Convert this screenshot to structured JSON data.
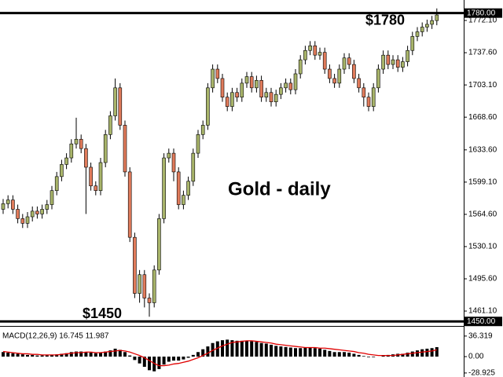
{
  "chart_data": [
    {
      "type": "candlestick",
      "title": "Gold - daily",
      "open": [
        1570,
        1576,
        1580,
        1570,
        1560,
        1555,
        1562,
        1568,
        1565,
        1570,
        1575,
        1590,
        1605,
        1618,
        1625,
        1640,
        1645,
        1635,
        1615,
        1595,
        1590,
        1620,
        1650,
        1670,
        1700,
        1660,
        1610,
        1540,
        1480,
        1500,
        1475,
        1470,
        1505,
        1560,
        1625,
        1630,
        1610,
        1575,
        1585,
        1600,
        1630,
        1650,
        1660,
        1700,
        1720,
        1710,
        1690,
        1680,
        1695,
        1690,
        1705,
        1712,
        1700,
        1708,
        1690,
        1695,
        1685,
        1693,
        1700,
        1705,
        1698,
        1715,
        1730,
        1740,
        1745,
        1735,
        1738,
        1720,
        1710,
        1705,
        1720,
        1732,
        1725,
        1710,
        1700,
        1690,
        1680,
        1700,
        1720,
        1735,
        1725,
        1730,
        1722,
        1728,
        1740,
        1755,
        1760,
        1765,
        1768,
        1772
      ],
      "high": [
        1581,
        1585,
        1585,
        1575,
        1565,
        1567,
        1573,
        1573,
        1575,
        1580,
        1595,
        1610,
        1623,
        1630,
        1645,
        1668,
        1650,
        1640,
        1620,
        1600,
        1625,
        1655,
        1675,
        1710,
        1705,
        1665,
        1615,
        1545,
        1505,
        1505,
        1480,
        1510,
        1565,
        1630,
        1635,
        1635,
        1615,
        1590,
        1605,
        1635,
        1655,
        1665,
        1705,
        1725,
        1725,
        1715,
        1695,
        1700,
        1700,
        1710,
        1717,
        1717,
        1713,
        1713,
        1700,
        1700,
        1698,
        1705,
        1710,
        1710,
        1720,
        1735,
        1745,
        1750,
        1750,
        1743,
        1743,
        1725,
        1715,
        1725,
        1737,
        1737,
        1730,
        1715,
        1705,
        1695,
        1705,
        1725,
        1740,
        1740,
        1735,
        1735,
        1733,
        1745,
        1760,
        1765,
        1770,
        1773,
        1777,
        1785
      ],
      "low": [
        1565,
        1571,
        1565,
        1555,
        1550,
        1550,
        1557,
        1560,
        1560,
        1565,
        1570,
        1585,
        1600,
        1613,
        1620,
        1635,
        1630,
        1565,
        1590,
        1585,
        1585,
        1615,
        1645,
        1665,
        1655,
        1605,
        1535,
        1475,
        1470,
        1465,
        1455,
        1465,
        1500,
        1555,
        1620,
        1600,
        1570,
        1570,
        1580,
        1595,
        1625,
        1645,
        1655,
        1695,
        1705,
        1685,
        1675,
        1675,
        1685,
        1685,
        1700,
        1695,
        1695,
        1685,
        1685,
        1680,
        1680,
        1688,
        1695,
        1693,
        1693,
        1710,
        1725,
        1735,
        1730,
        1730,
        1715,
        1705,
        1700,
        1700,
        1715,
        1720,
        1705,
        1695,
        1680,
        1675,
        1675,
        1695,
        1715,
        1720,
        1720,
        1717,
        1717,
        1723,
        1735,
        1750,
        1755,
        1760,
        1763,
        1767
      ],
      "close": [
        1576,
        1580,
        1570,
        1560,
        1555,
        1562,
        1568,
        1565,
        1570,
        1575,
        1590,
        1605,
        1618,
        1625,
        1640,
        1645,
        1635,
        1615,
        1595,
        1590,
        1620,
        1650,
        1670,
        1700,
        1660,
        1610,
        1540,
        1480,
        1500,
        1475,
        1470,
        1505,
        1560,
        1625,
        1630,
        1610,
        1575,
        1585,
        1600,
        1630,
        1650,
        1660,
        1700,
        1720,
        1710,
        1690,
        1680,
        1695,
        1690,
        1705,
        1712,
        1700,
        1708,
        1690,
        1695,
        1685,
        1693,
        1700,
        1705,
        1698,
        1715,
        1730,
        1740,
        1745,
        1735,
        1738,
        1720,
        1710,
        1705,
        1720,
        1732,
        1725,
        1710,
        1700,
        1690,
        1680,
        1700,
        1720,
        1735,
        1725,
        1730,
        1722,
        1728,
        1740,
        1755,
        1760,
        1765,
        1768,
        1772,
        1778
      ],
      "up_color": "#a8b46a",
      "down_color": "#e07b5b",
      "ylim": [
        1446,
        1794
      ],
      "yticks": [
        {
          "value": 1772.1,
          "label": "1772.10"
        },
        {
          "value": 1737.6,
          "label": "1737.60"
        },
        {
          "value": 1703.1,
          "label": "1703.10"
        },
        {
          "value": 1668.6,
          "label": "1668.60"
        },
        {
          "value": 1633.6,
          "label": "1633.60"
        },
        {
          "value": 1599.1,
          "label": "1599.10"
        },
        {
          "value": 1564.6,
          "label": "1564.60"
        },
        {
          "value": 1530.1,
          "label": "1530.10"
        },
        {
          "value": 1495.6,
          "label": "1495.60"
        },
        {
          "value": 1461.1,
          "label": "1461.10"
        }
      ],
      "levels": [
        {
          "value": 1780,
          "label": "1780.00",
          "note": "$1780"
        },
        {
          "value": 1450,
          "label": "1450.00",
          "note": "$1450"
        }
      ]
    },
    {
      "type": "macd",
      "label": "MACD(12,26,9) 16.745 11.987",
      "ylim": [
        -36,
        50
      ],
      "yticks": [
        36.319,
        {
          "value": 0,
          "label": "0.00"
        },
        -28.925
      ],
      "series": [
        {
          "color": "#000000",
          "values": [
            8,
            7,
            6,
            5,
            4,
            3,
            3,
            2,
            2,
            2,
            3,
            4,
            5,
            6,
            8,
            9,
            9,
            8,
            7,
            6,
            7,
            9,
            11,
            14,
            12,
            8,
            2,
            -6,
            -12,
            -18,
            -24,
            -26,
            -22,
            -14,
            -9,
            -7,
            -7,
            -5,
            -2,
            3,
            8,
            13,
            18,
            24,
            27,
            29,
            30,
            29,
            28,
            28,
            28,
            27,
            26,
            24,
            23,
            21,
            19,
            18,
            17,
            16,
            15,
            15,
            16,
            16,
            15,
            14,
            12,
            10,
            8,
            8,
            8,
            7,
            5,
            3,
            1,
            -1,
            -1,
            0,
            2,
            3,
            4,
            5,
            5,
            7,
            9,
            11,
            13,
            14,
            15,
            16.745
          ]
        },
        {
          "color": "#e00000",
          "values": [
            9,
            8,
            7,
            6,
            5,
            5,
            4,
            4,
            3,
            3,
            3,
            3,
            4,
            5,
            6,
            7,
            7,
            8,
            8,
            7,
            7,
            8,
            9,
            10,
            11,
            10,
            8,
            5,
            2,
            -2,
            -7,
            -12,
            -16,
            -16,
            -15,
            -13,
            -12,
            -10,
            -8,
            -5,
            -2,
            2,
            6,
            11,
            15,
            19,
            22,
            25,
            26,
            27,
            28,
            28,
            27,
            26,
            25,
            24,
            22,
            21,
            20,
            19,
            18,
            17,
            16,
            16,
            16,
            15,
            15,
            14,
            13,
            12,
            11,
            10,
            9,
            7,
            6,
            4,
            3,
            2,
            2,
            2,
            2,
            3,
            4,
            5,
            6,
            7,
            8,
            9,
            10,
            11.987
          ]
        }
      ]
    }
  ]
}
